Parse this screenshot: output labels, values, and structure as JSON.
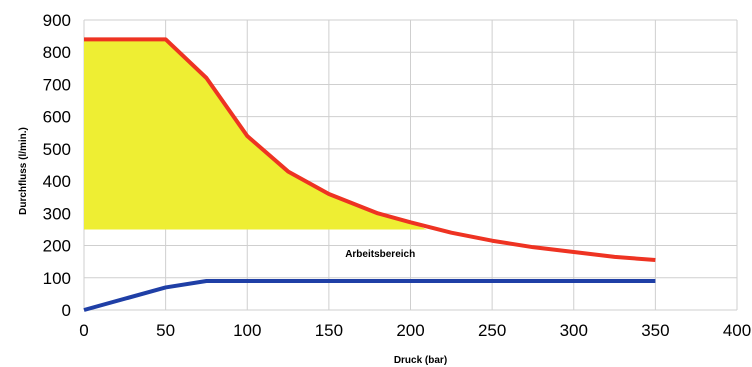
{
  "chart_data": {
    "type": "line",
    "xlabel": "Druck (bar)",
    "ylabel": "Durchfluss (l/min.)",
    "xlim": [
      0,
      400
    ],
    "ylim": [
      0,
      900
    ],
    "xticks": [
      0,
      50,
      100,
      150,
      200,
      250,
      300,
      350,
      400
    ],
    "yticks": [
      0,
      100,
      200,
      300,
      400,
      500,
      600,
      700,
      800,
      900
    ],
    "grid": true,
    "legend": "none",
    "series": [
      {
        "color": "#ee3322",
        "points": [
          [
            0,
            840
          ],
          [
            50,
            840
          ],
          [
            75,
            720
          ],
          [
            100,
            540
          ],
          [
            125,
            430
          ],
          [
            150,
            360
          ],
          [
            180,
            300
          ],
          [
            200,
            272
          ],
          [
            225,
            240
          ],
          [
            250,
            215
          ],
          [
            275,
            195
          ],
          [
            300,
            180
          ],
          [
            325,
            165
          ],
          [
            350,
            155
          ]
        ]
      },
      {
        "color": "#1f3fa6",
        "points": [
          [
            0,
            0
          ],
          [
            50,
            70
          ],
          [
            75,
            90
          ],
          [
            350,
            90
          ]
        ]
      }
    ],
    "area": {
      "label": "Arbeitsbereich",
      "label_at": [
        160,
        165
      ],
      "color": "#eeee33",
      "points": [
        [
          0,
          840
        ],
        [
          50,
          840
        ],
        [
          75,
          720
        ],
        [
          100,
          540
        ],
        [
          125,
          430
        ],
        [
          150,
          360
        ],
        [
          180,
          300
        ],
        [
          200,
          272
        ],
        [
          210,
          250
        ],
        [
          0,
          250
        ]
      ]
    }
  }
}
